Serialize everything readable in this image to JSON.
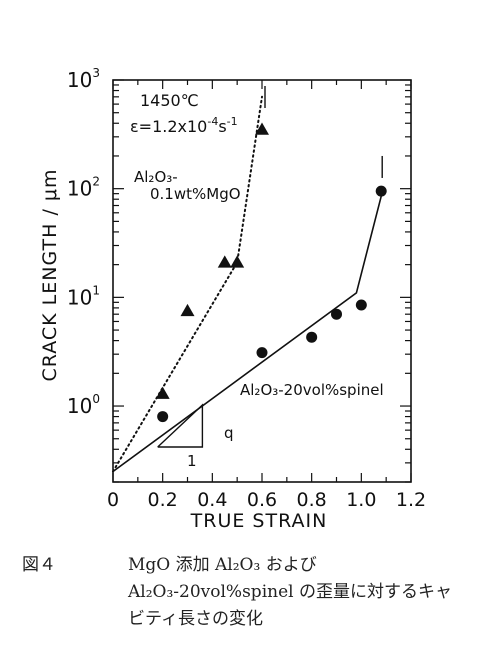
{
  "chart_data": {
    "type": "scatter",
    "xlabel": "TRUE STRAIN",
    "ylabel": "CRACK LENGTH / μm",
    "xlim": [
      0,
      1.2
    ],
    "ylim": [
      0.2,
      1000
    ],
    "yscale": "log",
    "x_ticks": [
      "0",
      "0.2",
      "0.4",
      "0.6",
      "0.8",
      "1.0",
      "1.2"
    ],
    "y_ticks": [
      {
        "value": 1,
        "base": "10",
        "exp": "0"
      },
      {
        "value": 10,
        "base": "10",
        "exp": "1"
      },
      {
        "value": 100,
        "base": "10",
        "exp": "2"
      },
      {
        "value": 1000,
        "base": "10",
        "exp": "3"
      }
    ],
    "conditions": {
      "temperature": "1450℃",
      "rate_symbol": "ε",
      "rate_value": "=1.2x10",
      "rate_exp": "-4",
      "rate_unit": "s",
      "rate_unit_exp": "-1"
    },
    "slope_label": "q",
    "slope_base_label": "1",
    "series": [
      {
        "name": "Al2O3-0.1wt%MgO",
        "label_line1": "Al₂O₃-",
        "label_line2": "0.1wt%MgO",
        "marker": "triangle",
        "line_style": "dotted",
        "points": [
          {
            "x": 0.2,
            "y": 1.3
          },
          {
            "x": 0.3,
            "y": 7.5
          },
          {
            "x": 0.45,
            "y": 21
          },
          {
            "x": 0.5,
            "y": 21
          },
          {
            "x": 0.6,
            "y": 350
          }
        ],
        "fit": [
          {
            "x": 0.0,
            "y": 0.25
          },
          {
            "x": 0.5,
            "y": 21
          },
          {
            "x": 0.6,
            "y": 700
          }
        ]
      },
      {
        "name": "Al2O3-20vol%spinel",
        "label": "Al₂O₃-20vol%spinel",
        "marker": "circle",
        "line_style": "solid",
        "points": [
          {
            "x": 0.2,
            "y": 0.8
          },
          {
            "x": 0.6,
            "y": 3.1
          },
          {
            "x": 0.8,
            "y": 4.3
          },
          {
            "x": 0.9,
            "y": 7.0
          },
          {
            "x": 1.0,
            "y": 8.5
          },
          {
            "x": 1.08,
            "y": 95
          }
        ],
        "fit": [
          {
            "x": 0.0,
            "y": 0.25
          },
          {
            "x": 0.98,
            "y": 11
          },
          {
            "x": 1.08,
            "y": 85
          }
        ]
      }
    ]
  },
  "caption": {
    "label": "図４",
    "text": "MgO 添加 Al₂O₃ および Al₂O₃-20vol%spinel の歪量に対するキャビティ長さの変化"
  }
}
